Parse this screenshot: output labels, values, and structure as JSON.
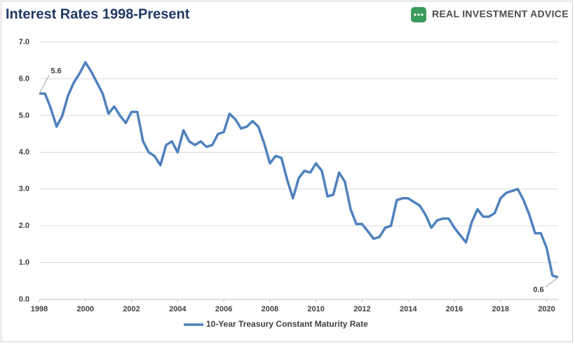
{
  "chart_data": {
    "type": "line",
    "title": "Interest Rates 1998-Present",
    "logo_text": "REAL INVESTMENT ADVICE",
    "x": [
      1998,
      1998.25,
      1998.5,
      1998.75,
      1999,
      1999.25,
      1999.5,
      1999.75,
      2000,
      2000.25,
      2000.5,
      2000.75,
      2001,
      2001.25,
      2001.5,
      2001.75,
      2002,
      2002.25,
      2002.5,
      2002.75,
      2003,
      2003.25,
      2003.5,
      2003.75,
      2004,
      2004.25,
      2004.5,
      2004.75,
      2005,
      2005.25,
      2005.5,
      2005.75,
      2006,
      2006.25,
      2006.5,
      2006.75,
      2007,
      2007.25,
      2007.5,
      2007.75,
      2008,
      2008.25,
      2008.5,
      2008.75,
      2009,
      2009.25,
      2009.5,
      2009.75,
      2010,
      2010.25,
      2010.5,
      2010.75,
      2011,
      2011.25,
      2011.5,
      2011.75,
      2012,
      2012.25,
      2012.5,
      2012.75,
      2013,
      2013.25,
      2013.5,
      2013.75,
      2014,
      2014.25,
      2014.5,
      2014.75,
      2015,
      2015.25,
      2015.5,
      2015.75,
      2016,
      2016.25,
      2016.5,
      2016.75,
      2017,
      2017.25,
      2017.5,
      2017.75,
      2018,
      2018.25,
      2018.5,
      2018.75,
      2019,
      2019.25,
      2019.5,
      2019.75,
      2020,
      2020.25,
      2020.5
    ],
    "series": [
      {
        "name": "10-Year Treasury Constant Maturity Rate",
        "color": "#4f81bd",
        "values": [
          5.6,
          5.6,
          5.2,
          4.7,
          5.0,
          5.55,
          5.9,
          6.15,
          6.45,
          6.2,
          5.9,
          5.6,
          5.05,
          5.25,
          5.0,
          4.8,
          5.1,
          5.1,
          4.3,
          4.0,
          3.9,
          3.65,
          4.2,
          4.3,
          4.0,
          4.6,
          4.3,
          4.2,
          4.3,
          4.15,
          4.2,
          4.5,
          4.55,
          5.05,
          4.9,
          4.65,
          4.7,
          4.85,
          4.7,
          4.25,
          3.7,
          3.9,
          3.85,
          3.25,
          2.75,
          3.3,
          3.5,
          3.45,
          3.7,
          3.5,
          2.8,
          2.85,
          3.45,
          3.2,
          2.45,
          2.05,
          2.05,
          1.85,
          1.65,
          1.7,
          1.95,
          2.0,
          2.7,
          2.75,
          2.75,
          2.65,
          2.55,
          2.3,
          1.95,
          2.15,
          2.2,
          2.2,
          1.95,
          1.75,
          1.55,
          2.1,
          2.45,
          2.25,
          2.25,
          2.35,
          2.75,
          2.9,
          2.95,
          3.0,
          2.7,
          2.3,
          1.8,
          1.8,
          1.4,
          0.65,
          0.6
        ],
        "value_labels": [
          "5.6",
          null,
          null,
          null,
          null,
          null,
          null,
          null,
          null,
          null,
          null,
          null,
          null,
          null,
          null,
          null,
          null,
          null,
          null,
          null,
          null,
          null,
          null,
          null,
          null,
          null,
          null,
          null,
          null,
          null,
          null,
          null,
          null,
          null,
          null,
          null,
          null,
          null,
          null,
          null,
          null,
          null,
          null,
          null,
          null,
          null,
          null,
          null,
          null,
          null,
          null,
          null,
          null,
          null,
          null,
          null,
          null,
          null,
          null,
          null,
          null,
          null,
          null,
          null,
          null,
          null,
          null,
          null,
          null,
          null,
          null,
          null,
          null,
          null,
          null,
          null,
          null,
          null,
          null,
          null,
          null,
          null,
          null,
          null,
          null,
          null,
          null,
          null,
          null,
          null,
          "0.6"
        ]
      }
    ],
    "xlim": [
      1998,
      2020.5
    ],
    "xticks": [
      1998,
      2000,
      2002,
      2004,
      2006,
      2008,
      2010,
      2012,
      2014,
      2016,
      2018,
      2020
    ],
    "ylim": [
      0,
      7
    ],
    "yticks": [
      {
        "value": 0,
        "label": "0.0"
      },
      {
        "value": 1,
        "label": "1.0"
      },
      {
        "value": 2,
        "label": "2.0"
      },
      {
        "value": 3,
        "label": "3.0"
      },
      {
        "value": 4,
        "label": "4.0"
      },
      {
        "value": 5,
        "label": "5.0"
      },
      {
        "value": 6,
        "label": "6.0"
      },
      {
        "value": 7,
        "label": "7.0"
      }
    ],
    "grid": true,
    "legend": "bottom"
  }
}
